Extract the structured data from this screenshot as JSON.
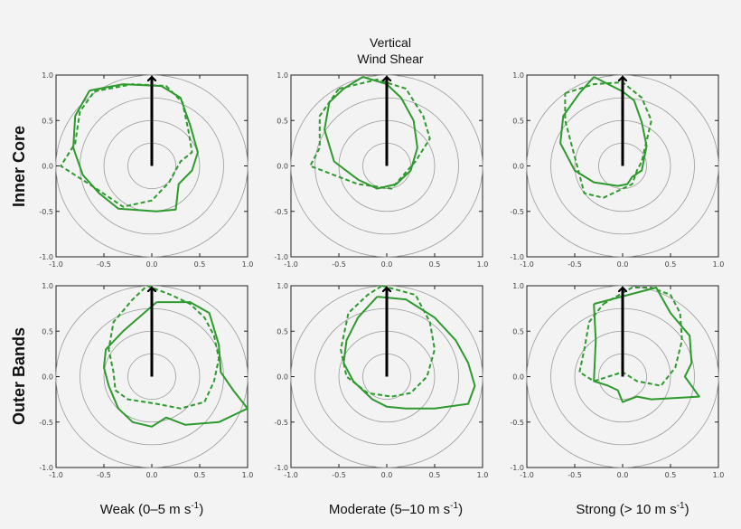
{
  "figure": {
    "title_lines": [
      "Vertical",
      "Wind Shear"
    ],
    "row_labels": [
      "Inner Core",
      "Outer Bands"
    ],
    "col_labels": [
      {
        "main": "Weak (0–5 m s",
        "sup": "-1",
        "tail": ")"
      },
      {
        "main": "Moderate (5–10 m s",
        "sup": "-1",
        "tail": ")"
      },
      {
        "main": "Strong (> 10 m s",
        "sup": "-1",
        "tail": ")"
      }
    ],
    "colors": {
      "series": "#2e9a2e",
      "arrow": "#000000",
      "circles": "#9a9a9a",
      "background": "#f3f3f3"
    }
  },
  "chart_data": [
    {
      "type": "polar-line",
      "panel": "inner-weak",
      "xlim": [
        -1.0,
        1.0
      ],
      "ylim": [
        -1.0,
        1.0
      ],
      "x_ticks": [
        "-1.0",
        "-0.5",
        "0.0",
        "0.5",
        "1.0"
      ],
      "y_ticks": [
        "-1.0",
        "-0.5",
        "0.0",
        "0.5",
        "1.0"
      ],
      "circle_radii": [
        0.25,
        0.5,
        0.75,
        1.0
      ],
      "arrow": {
        "x": 0.0,
        "y": 0.0,
        "dx": 0.0,
        "dy": 1.0
      },
      "series": [
        {
          "style": "solid",
          "points": [
            [
              -0.65,
              0.83
            ],
            [
              -0.3,
              0.9
            ],
            [
              0.1,
              0.88
            ],
            [
              0.3,
              0.75
            ],
            [
              0.4,
              0.45
            ],
            [
              0.48,
              0.15
            ],
            [
              0.42,
              -0.05
            ],
            [
              0.28,
              -0.2
            ],
            [
              0.25,
              -0.48
            ],
            [
              0.05,
              -0.5
            ],
            [
              -0.35,
              -0.47
            ],
            [
              -0.55,
              -0.3
            ],
            [
              -0.72,
              -0.1
            ],
            [
              -0.82,
              0.2
            ],
            [
              -0.8,
              0.55
            ],
            [
              -0.65,
              0.83
            ]
          ]
        },
        {
          "style": "dashed",
          "points": [
            [
              -0.6,
              0.82
            ],
            [
              -0.2,
              0.9
            ],
            [
              0.15,
              0.88
            ],
            [
              0.32,
              0.7
            ],
            [
              0.38,
              0.4
            ],
            [
              0.42,
              0.15
            ],
            [
              0.3,
              0.05
            ],
            [
              0.18,
              -0.18
            ],
            [
              0.0,
              -0.38
            ],
            [
              -0.3,
              -0.45
            ],
            [
              -0.58,
              -0.25
            ],
            [
              -0.95,
              0.0
            ],
            [
              -0.8,
              0.25
            ],
            [
              -0.75,
              0.6
            ],
            [
              -0.6,
              0.82
            ]
          ]
        }
      ]
    },
    {
      "type": "polar-line",
      "panel": "inner-moderate",
      "xlim": [
        -1.0,
        1.0
      ],
      "ylim": [
        -1.0,
        1.0
      ],
      "x_ticks": [
        "-1.0",
        "-0.5",
        "0.0",
        "0.5",
        "1.0"
      ],
      "y_ticks": [
        "-1.0",
        "-0.5",
        "0.0",
        "0.5",
        "1.0"
      ],
      "circle_radii": [
        0.25,
        0.5,
        0.75,
        1.0
      ],
      "arrow": {
        "x": 0.0,
        "y": 0.0,
        "dx": 0.0,
        "dy": 1.0
      },
      "series": [
        {
          "style": "solid",
          "points": [
            [
              -0.25,
              0.98
            ],
            [
              0.0,
              0.9
            ],
            [
              0.15,
              0.75
            ],
            [
              0.28,
              0.5
            ],
            [
              0.32,
              0.2
            ],
            [
              0.25,
              -0.05
            ],
            [
              0.1,
              -0.2
            ],
            [
              -0.1,
              -0.25
            ],
            [
              -0.3,
              -0.15
            ],
            [
              -0.55,
              0.05
            ],
            [
              -0.65,
              0.4
            ],
            [
              -0.6,
              0.7
            ],
            [
              -0.45,
              0.85
            ],
            [
              -0.25,
              0.98
            ]
          ]
        },
        {
          "style": "dashed",
          "points": [
            [
              -0.5,
              0.85
            ],
            [
              -0.1,
              0.95
            ],
            [
              0.2,
              0.85
            ],
            [
              0.38,
              0.55
            ],
            [
              0.45,
              0.3
            ],
            [
              0.3,
              0.05
            ],
            [
              0.05,
              -0.25
            ],
            [
              -0.3,
              -0.2
            ],
            [
              -0.8,
              0.0
            ],
            [
              -0.7,
              0.2
            ],
            [
              -0.7,
              0.55
            ],
            [
              -0.5,
              0.85
            ]
          ]
        }
      ]
    },
    {
      "type": "polar-line",
      "panel": "inner-strong",
      "xlim": [
        -1.0,
        1.0
      ],
      "ylim": [
        -1.0,
        1.0
      ],
      "x_ticks": [
        "-1.0",
        "-0.5",
        "0.0",
        "0.5",
        "1.0"
      ],
      "y_ticks": [
        "-1.0",
        "-0.5",
        "0.0",
        "0.5",
        "1.0"
      ],
      "circle_radii": [
        0.25,
        0.5,
        0.75,
        1.0
      ],
      "arrow": {
        "x": 0.0,
        "y": 0.0,
        "dx": 0.0,
        "dy": 1.0
      },
      "series": [
        {
          "style": "solid",
          "points": [
            [
              -0.3,
              0.98
            ],
            [
              -0.15,
              0.9
            ],
            [
              0.0,
              0.82
            ],
            [
              0.12,
              0.72
            ],
            [
              0.2,
              0.48
            ],
            [
              0.25,
              0.22
            ],
            [
              0.2,
              -0.05
            ],
            [
              0.1,
              -0.12
            ],
            [
              0.05,
              -0.2
            ],
            [
              -0.05,
              -0.22
            ],
            [
              -0.3,
              -0.18
            ],
            [
              -0.5,
              -0.05
            ],
            [
              -0.65,
              0.25
            ],
            [
              -0.62,
              0.55
            ],
            [
              -0.45,
              0.8
            ],
            [
              -0.3,
              0.98
            ]
          ]
        },
        {
          "style": "dashed",
          "points": [
            [
              -0.6,
              0.8
            ],
            [
              -0.3,
              0.9
            ],
            [
              0.0,
              0.92
            ],
            [
              0.2,
              0.75
            ],
            [
              0.3,
              0.5
            ],
            [
              0.2,
              0.05
            ],
            [
              0.15,
              -0.05
            ],
            [
              0.1,
              -0.2
            ],
            [
              -0.2,
              -0.35
            ],
            [
              -0.4,
              -0.3
            ],
            [
              -0.5,
              0.1
            ],
            [
              -0.6,
              0.5
            ],
            [
              -0.6,
              0.8
            ]
          ]
        }
      ]
    },
    {
      "type": "polar-line",
      "panel": "outer-weak",
      "xlim": [
        -1.0,
        1.0
      ],
      "ylim": [
        -1.0,
        1.0
      ],
      "x_ticks": [
        "-1.0",
        "-0.5",
        "0.0",
        "0.5",
        "1.0"
      ],
      "y_ticks": [
        "-1.0",
        "-0.5",
        "0.0",
        "0.5",
        "1.0"
      ],
      "circle_radii": [
        0.25,
        0.5,
        0.75,
        1.0
      ],
      "arrow": {
        "x": 0.0,
        "y": 0.0,
        "dx": 0.0,
        "dy": 1.0
      },
      "series": [
        {
          "style": "solid",
          "points": [
            [
              0.05,
              0.82
            ],
            [
              0.4,
              0.82
            ],
            [
              0.6,
              0.7
            ],
            [
              0.7,
              0.35
            ],
            [
              0.72,
              0.05
            ],
            [
              0.85,
              -0.15
            ],
            [
              1.0,
              -0.35
            ],
            [
              0.7,
              -0.5
            ],
            [
              0.35,
              -0.53
            ],
            [
              0.15,
              -0.45
            ],
            [
              0.0,
              -0.55
            ],
            [
              -0.2,
              -0.5
            ],
            [
              -0.35,
              -0.35
            ],
            [
              -0.45,
              -0.1
            ],
            [
              -0.5,
              0.1
            ],
            [
              -0.48,
              0.3
            ],
            [
              -0.3,
              0.5
            ],
            [
              0.05,
              0.82
            ]
          ]
        },
        {
          "style": "dashed",
          "points": [
            [
              -0.05,
              1.0
            ],
            [
              0.2,
              0.9
            ],
            [
              0.4,
              0.8
            ],
            [
              0.55,
              0.65
            ],
            [
              0.65,
              0.45
            ],
            [
              0.7,
              0.2
            ],
            [
              0.65,
              -0.05
            ],
            [
              0.55,
              -0.28
            ],
            [
              0.3,
              -0.35
            ],
            [
              0.05,
              -0.3
            ],
            [
              -0.25,
              -0.25
            ],
            [
              -0.38,
              -0.15
            ],
            [
              -0.4,
              0.05
            ],
            [
              -0.45,
              0.3
            ],
            [
              -0.4,
              0.6
            ],
            [
              -0.2,
              0.85
            ],
            [
              -0.05,
              1.0
            ]
          ]
        }
      ]
    },
    {
      "type": "polar-line",
      "panel": "outer-moderate",
      "xlim": [
        -1.0,
        1.0
      ],
      "ylim": [
        -1.0,
        1.0
      ],
      "x_ticks": [
        "-1.0",
        "-0.5",
        "0.0",
        "0.5",
        "1.0"
      ],
      "y_ticks": [
        "-1.0",
        "-0.5",
        "0.0",
        "0.5",
        "1.0"
      ],
      "circle_radii": [
        0.25,
        0.5,
        0.75,
        1.0
      ],
      "arrow": {
        "x": 0.0,
        "y": 0.0,
        "dx": 0.0,
        "dy": 1.0
      },
      "series": [
        {
          "style": "solid",
          "points": [
            [
              -0.1,
              0.88
            ],
            [
              0.2,
              0.85
            ],
            [
              0.5,
              0.65
            ],
            [
              0.72,
              0.4
            ],
            [
              0.85,
              0.15
            ],
            [
              0.92,
              -0.1
            ],
            [
              0.85,
              -0.3
            ],
            [
              0.5,
              -0.35
            ],
            [
              0.2,
              -0.35
            ],
            [
              0.0,
              -0.33
            ],
            [
              -0.15,
              -0.25
            ],
            [
              -0.35,
              -0.05
            ],
            [
              -0.45,
              0.15
            ],
            [
              -0.42,
              0.4
            ],
            [
              -0.3,
              0.65
            ],
            [
              -0.1,
              0.88
            ]
          ]
        },
        {
          "style": "dashed",
          "points": [
            [
              -0.05,
              1.0
            ],
            [
              0.3,
              0.9
            ],
            [
              0.45,
              0.6
            ],
            [
              0.5,
              0.3
            ],
            [
              0.42,
              0.0
            ],
            [
              0.25,
              -0.18
            ],
            [
              0.05,
              -0.22
            ],
            [
              -0.2,
              -0.18
            ],
            [
              -0.42,
              0.0
            ],
            [
              -0.48,
              0.3
            ],
            [
              -0.4,
              0.7
            ],
            [
              -0.2,
              0.9
            ],
            [
              -0.05,
              1.0
            ]
          ]
        }
      ]
    },
    {
      "type": "polar-line",
      "panel": "outer-strong",
      "xlim": [
        -1.0,
        1.0
      ],
      "ylim": [
        -1.0,
        1.0
      ],
      "x_ticks": [
        "-1.0",
        "-0.5",
        "0.0",
        "0.5",
        "1.0"
      ],
      "y_ticks": [
        "-1.0",
        "-0.5",
        "0.0",
        "0.5",
        "1.0"
      ],
      "circle_radii": [
        0.25,
        0.5,
        0.75,
        1.0
      ],
      "arrow": {
        "x": 0.0,
        "y": 0.0,
        "dx": 0.0,
        "dy": 1.0
      },
      "series": [
        {
          "style": "solid",
          "points": [
            [
              -0.3,
              0.8
            ],
            [
              0.35,
              0.98
            ],
            [
              0.5,
              0.7
            ],
            [
              0.7,
              0.45
            ],
            [
              0.72,
              0.15
            ],
            [
              0.65,
              0.0
            ],
            [
              0.8,
              -0.22
            ],
            [
              0.3,
              -0.25
            ],
            [
              0.15,
              -0.22
            ],
            [
              0.0,
              -0.28
            ],
            [
              -0.05,
              -0.15
            ],
            [
              -0.15,
              -0.1
            ],
            [
              -0.3,
              -0.05
            ],
            [
              -0.28,
              0.4
            ],
            [
              -0.3,
              0.8
            ]
          ]
        },
        {
          "style": "dashed",
          "points": [
            [
              -0.2,
              0.8
            ],
            [
              0.1,
              0.98
            ],
            [
              0.3,
              0.98
            ],
            [
              0.5,
              0.9
            ],
            [
              0.6,
              0.7
            ],
            [
              0.62,
              0.4
            ],
            [
              0.55,
              0.1
            ],
            [
              0.4,
              -0.1
            ],
            [
              0.15,
              -0.05
            ],
            [
              0.0,
              0.05
            ],
            [
              -0.15,
              0.0
            ],
            [
              -0.3,
              -0.05
            ],
            [
              -0.45,
              0.05
            ],
            [
              -0.4,
              0.3
            ],
            [
              -0.35,
              0.6
            ],
            [
              -0.2,
              0.8
            ]
          ]
        }
      ]
    }
  ]
}
